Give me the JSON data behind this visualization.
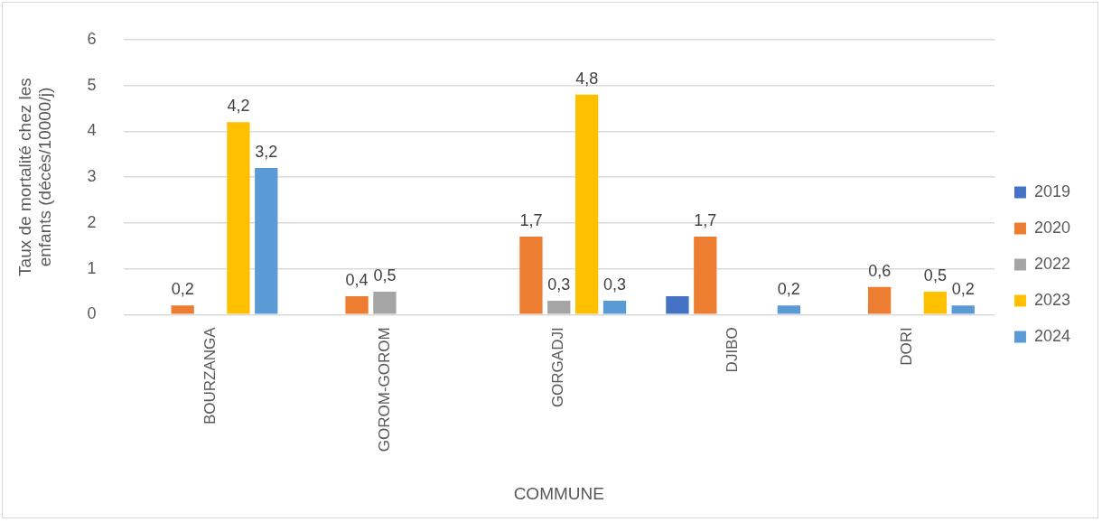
{
  "chart_data": {
    "type": "bar",
    "xlabel": "COMMUNE",
    "ylabel": "Taux de mortalité chez les enfants (décès/10000/j)",
    "categories": [
      "BOURZANGA",
      "GOROM-GOROM",
      "GORGADJI",
      "DJIBO",
      "DORI"
    ],
    "series": [
      {
        "name": "2019",
        "color": "#4472c4",
        "values": [
          null,
          null,
          null,
          0.4,
          null
        ],
        "value_labels": [
          null,
          null,
          null,
          null,
          null
        ]
      },
      {
        "name": "2020",
        "color": "#ed7d31",
        "values": [
          0.2,
          0.4,
          1.7,
          1.7,
          0.6
        ],
        "value_labels": [
          "0,2",
          "0,4",
          "1,7",
          "1,7",
          "0,6"
        ]
      },
      {
        "name": "2022",
        "color": "#a5a5a5",
        "values": [
          null,
          0.5,
          0.3,
          null,
          null
        ],
        "value_labels": [
          null,
          "0,5",
          "0,3",
          null,
          null
        ]
      },
      {
        "name": "2023",
        "color": "#ffc000",
        "values": [
          4.2,
          null,
          4.8,
          null,
          0.5
        ],
        "value_labels": [
          "4,2",
          null,
          "4,8",
          null,
          "0,5"
        ]
      },
      {
        "name": "2024",
        "color": "#5b9bd5",
        "values": [
          3.2,
          null,
          0.3,
          0.2,
          0.2
        ],
        "value_labels": [
          "3,2",
          null,
          "0,3",
          "0,2",
          "0,2"
        ]
      }
    ],
    "ylim": [
      0,
      6
    ],
    "yticks": [
      0,
      1,
      2,
      3,
      4,
      5,
      6
    ],
    "grid": "y",
    "legend": "right"
  }
}
